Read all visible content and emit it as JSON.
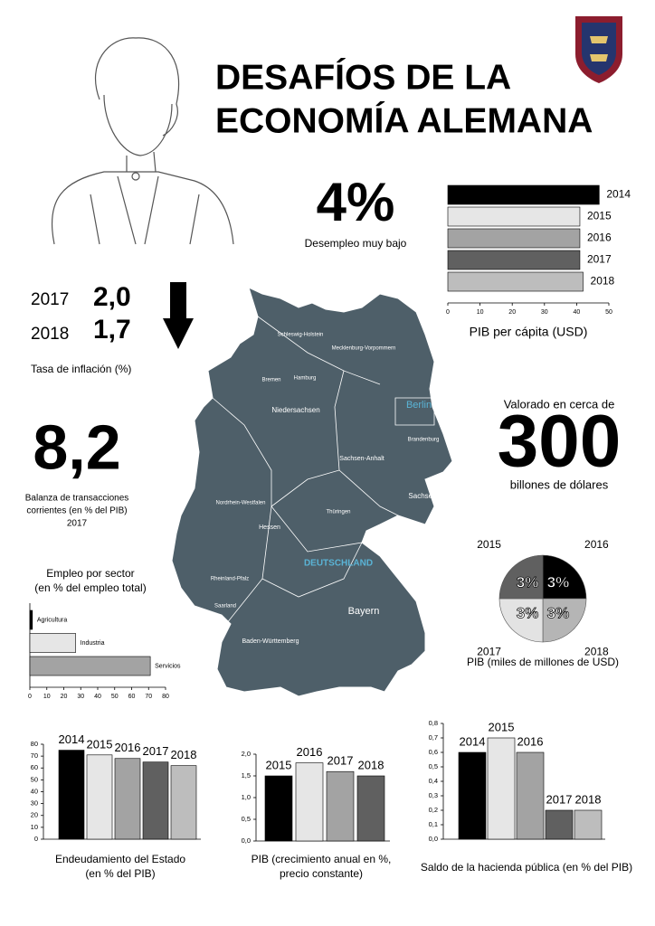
{
  "header": {
    "title": [
      "DESAFÍOS DE LA",
      "ECONOMÍA ALEMANA"
    ]
  },
  "stats": {
    "unemployment": {
      "value": "4%",
      "label": "Desempleo muy bajo"
    },
    "inflation": {
      "rows": [
        [
          "2017",
          "2,0"
        ],
        [
          "2018",
          "1,7"
        ]
      ],
      "label": "Tasa de inflación (%)"
    },
    "balance": {
      "value": "8,2",
      "label": [
        "Balanza de transacciones",
        "corrientes (en % del PIB)",
        "2017"
      ]
    },
    "valuation": {
      "intro": "Valorado en cerca de",
      "value": "300",
      "unit": "billones de dólares"
    }
  },
  "map": {
    "labels": [
      "Schleswig-Holstein",
      "Mecklenburg-Vorpommern",
      "Hamburg",
      "Bremen",
      "Niedersachsen",
      "Berlin",
      "Brandenburg",
      "Sachsen-Anhalt",
      "Nordrhein-Westfalen",
      "Sachsen",
      "Thüringen",
      "Hessen",
      "DEUTSCHLAND",
      "Rheinland-Pfalz",
      "Saarland",
      "Bayern",
      "Baden-Württemberg"
    ]
  },
  "chart_data": [
    {
      "type": "hbar",
      "title": "PIB per cápita (USD)",
      "categories": [
        "2014",
        "2015",
        "2016",
        "2017",
        "2018"
      ],
      "values": [
        47,
        41,
        41,
        41,
        42
      ],
      "colors": [
        "#000000",
        "#e6e6e6",
        "#a3a3a3",
        "#606060",
        "#bdbdbd"
      ],
      "xlim": [
        0,
        50
      ],
      "xticks": [
        0,
        10,
        20,
        30,
        40,
        50
      ]
    },
    {
      "type": "hbar",
      "title": "Empleo por sector",
      "subtitle": "(en % del empleo total)",
      "categories": [
        "Agricultura",
        "Industria",
        "Servicios"
      ],
      "values": [
        1.5,
        27,
        71
      ],
      "colors": [
        "#000000",
        "#e6e6e6",
        "#a3a3a3"
      ],
      "xlim": [
        0,
        80
      ],
      "xticks": [
        0,
        10,
        20,
        30,
        40,
        50,
        60,
        70,
        80
      ]
    },
    {
      "type": "pie",
      "title": "PIB (miles de millones de USD)",
      "categories": [
        "2016",
        "2018",
        "2017",
        "2015"
      ],
      "values": [
        3,
        3,
        3,
        3
      ],
      "value_labels": [
        "3%",
        "3%",
        "3%",
        "3%"
      ],
      "colors": [
        "#000000",
        "#b5b5b5",
        "#e3e3e3",
        "#606060"
      ]
    },
    {
      "type": "bar",
      "title": [
        "Endeudamiento del Estado",
        "(en % del PIB)"
      ],
      "categories": [
        "2014",
        "2015",
        "2016",
        "2017",
        "2018"
      ],
      "values": [
        75,
        71,
        68,
        65,
        62
      ],
      "colors": [
        "#000000",
        "#e6e6e6",
        "#a3a3a3",
        "#606060",
        "#bdbdbd"
      ],
      "ylim": [
        0,
        80
      ],
      "yticks": [
        0,
        10,
        20,
        30,
        40,
        50,
        60,
        70,
        80
      ]
    },
    {
      "type": "bar",
      "title": [
        "PIB (crecimiento anual en %,",
        "precio constante)"
      ],
      "categories": [
        "2015",
        "2016",
        "2017",
        "2018"
      ],
      "values": [
        1.5,
        1.8,
        1.6,
        1.5
      ],
      "colors": [
        "#000000",
        "#e6e6e6",
        "#a3a3a3",
        "#606060"
      ],
      "ylim": [
        0,
        2
      ],
      "yticks": [
        {
          "value": 0,
          "label": "0,0"
        },
        {
          "value": 0.5,
          "label": "0,5"
        },
        {
          "value": 1,
          "label": "1,0"
        },
        {
          "value": 1.5,
          "label": "1,5"
        },
        {
          "value": 2,
          "label": "2,0"
        }
      ]
    },
    {
      "type": "bar",
      "title": [
        "Saldo de la hacienda pública (en % del PIB)"
      ],
      "categories": [
        "2014",
        "2015",
        "2016",
        "2017",
        "2018"
      ],
      "values": [
        0.6,
        0.7,
        0.6,
        0.2,
        0.2
      ],
      "colors": [
        "#000000",
        "#e6e6e6",
        "#a3a3a3",
        "#606060",
        "#bdbdbd"
      ],
      "ylim": [
        0,
        0.8
      ],
      "yticks": [
        {
          "value": 0,
          "label": "0,0"
        },
        {
          "value": 0.1,
          "label": "0,1"
        },
        {
          "value": 0.2,
          "label": "0,2"
        },
        {
          "value": 0.3,
          "label": "0,3"
        },
        {
          "value": 0.4,
          "label": "0,4"
        },
        {
          "value": 0.5,
          "label": "0,5"
        },
        {
          "value": 0.6,
          "label": "0,6"
        },
        {
          "value": 0.7,
          "label": "0,7"
        },
        {
          "value": 0.8,
          "label": "0,8"
        }
      ]
    }
  ]
}
